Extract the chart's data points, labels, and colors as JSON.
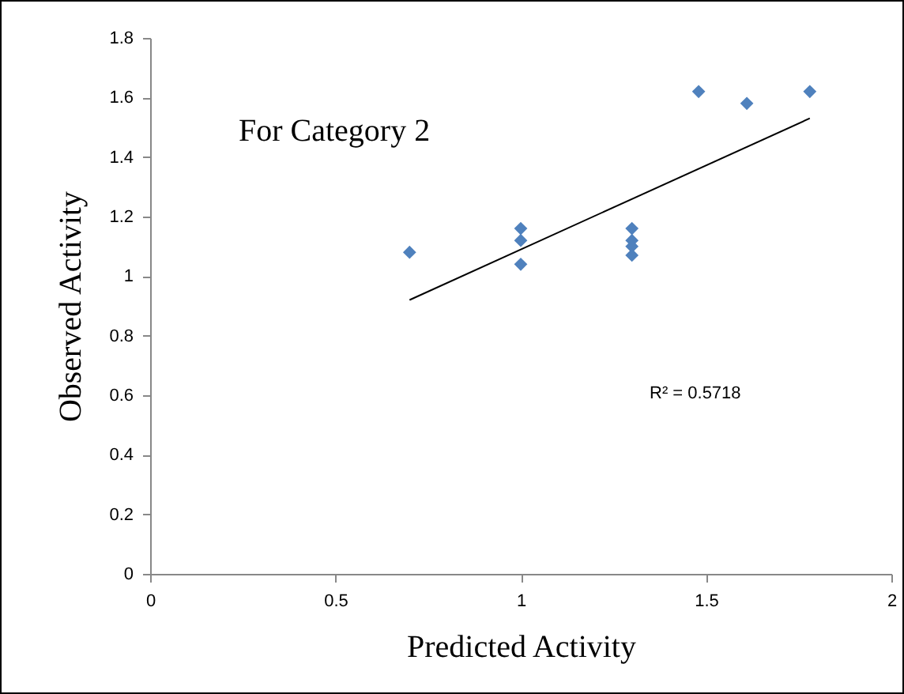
{
  "chart_data": {
    "type": "scatter",
    "xlabel": "Predicted Activity",
    "ylabel": "Observed Activity",
    "annotations": [
      "For Category 2",
      "R² = 0.5718"
    ],
    "xlim": [
      0,
      2
    ],
    "xticks": [
      0,
      0.5,
      1,
      1.5,
      2
    ],
    "ylim": [
      0,
      1.8
    ],
    "yticks": [
      0,
      0.2,
      0.4,
      0.6,
      0.8,
      1,
      1.2,
      1.4,
      1.6,
      1.8
    ],
    "grid": false,
    "marker": "diamond",
    "series": [
      {
        "type": "scatter",
        "color": "#4f81bd",
        "x": [
          0.7,
          1.0,
          1.0,
          1.0,
          1.3,
          1.3,
          1.3,
          1.3,
          1.48,
          1.61,
          1.78
        ],
        "values": [
          1.08,
          1.16,
          1.12,
          1.04,
          1.16,
          1.12,
          1.1,
          1.07,
          1.62,
          1.58,
          1.62
        ]
      },
      {
        "type": "line",
        "color": "#000000",
        "marker": "none",
        "line_style": "solid",
        "x": [
          0.7,
          1.78
        ],
        "values": [
          0.92,
          1.53
        ]
      }
    ]
  }
}
